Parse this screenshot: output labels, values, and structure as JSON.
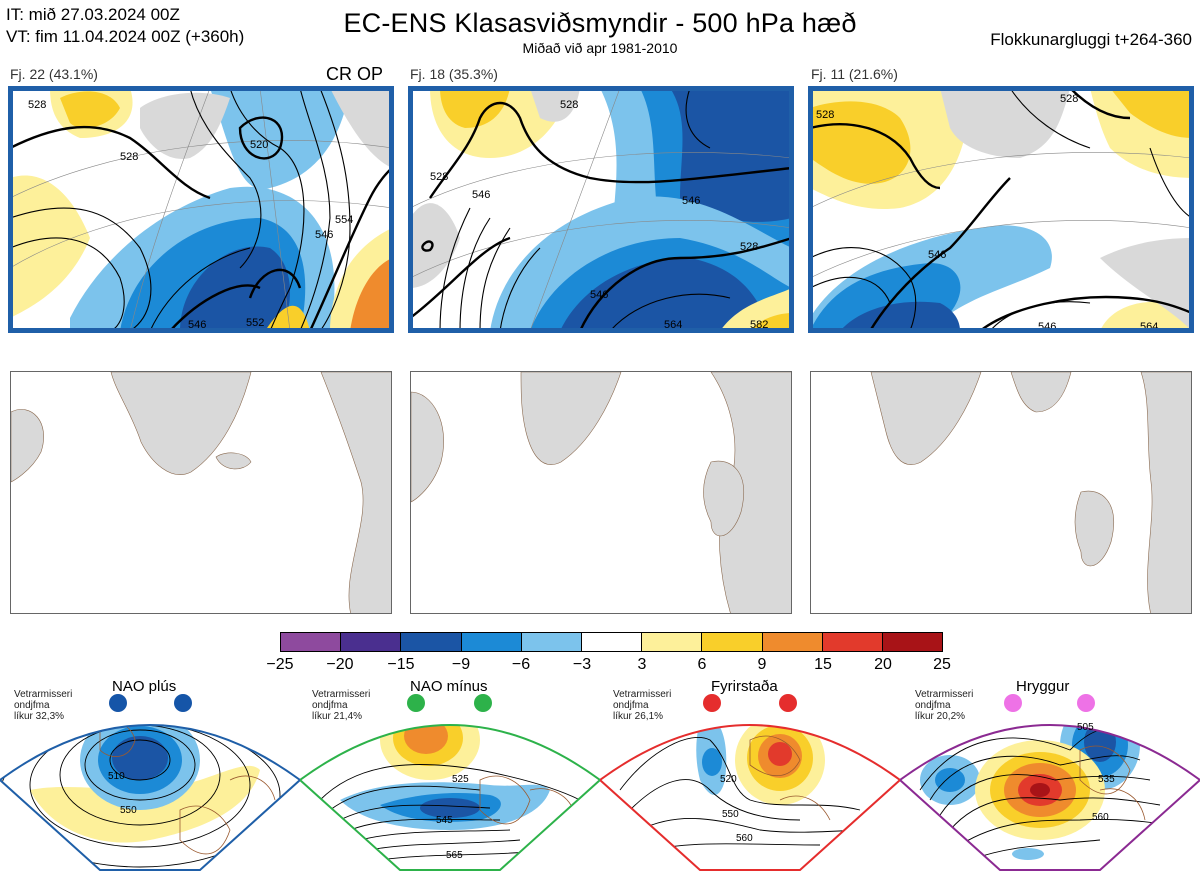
{
  "header": {
    "it_line": "IT: mið 27.03.2024 00Z",
    "vt_line": "VT: fim 11.04.2024 00Z  (+360h)",
    "title": "EC-ENS Klasasviðsmyndir - 500 hPa hæð",
    "subtitle": "Miðað við apr 1981-2010",
    "window": "Flokkunargluggi t+264-360"
  },
  "clusters": [
    {
      "label": "Fj. 22 (43.1%)",
      "badge": "CR OP",
      "contours": [
        "528",
        "520",
        "528",
        "546",
        "554",
        "546",
        "552"
      ]
    },
    {
      "label": "Fj. 18 (35.3%)",
      "badge": "",
      "contours": [
        "528",
        "528",
        "546",
        "546",
        "528",
        "546",
        "564",
        "582"
      ]
    },
    {
      "label": "Fj. 11 (21.6%)",
      "badge": "",
      "contours": [
        "528",
        "546",
        "528",
        "546",
        "564"
      ]
    }
  ],
  "colorbar": {
    "ticks": [
      "−25",
      "−20",
      "−15",
      "−9",
      "−6",
      "−3",
      "3",
      "6",
      "9",
      "15",
      "20",
      "25"
    ],
    "colors": [
      "#8e4a9e",
      "#4a2f8f",
      "#1b55a5",
      "#1c8ad6",
      "#7cc3ec",
      "#ffffff",
      "#fdf09a",
      "#f9cf2a",
      "#ef8b2d",
      "#e23a2c",
      "#a81317"
    ]
  },
  "regimes": [
    {
      "name": "NAO plús",
      "note": [
        "Vetrarmisseri",
        "ondjfma",
        "líkur 32,3%"
      ],
      "labels": [
        "510",
        "550"
      ],
      "dot_color": "#1555a8",
      "border_color": "#1f5fa8"
    },
    {
      "name": "NAO mínus",
      "note": [
        "Vetrarmisseri",
        "ondjfma",
        "líkur 21,4%"
      ],
      "labels": [
        "525",
        "545",
        "565"
      ],
      "dot_color": "#2db24a",
      "border_color": "#2db24a"
    },
    {
      "name": "Fyrirstaða",
      "note": [
        "Vetrarmisseri",
        "ondjfma",
        "líkur 26,1%"
      ],
      "labels": [
        "520",
        "550",
        "560"
      ],
      "dot_color": "#e52d2d",
      "border_color": "#e52d2d"
    },
    {
      "name": "Hryggur",
      "note": [
        "Vetrarmisseri",
        "ondjfma",
        "líkur 20,2%"
      ],
      "labels": [
        "505",
        "535",
        "560"
      ],
      "dot_color": "#ee72e6",
      "border_color": "#8b2a92"
    }
  ]
}
